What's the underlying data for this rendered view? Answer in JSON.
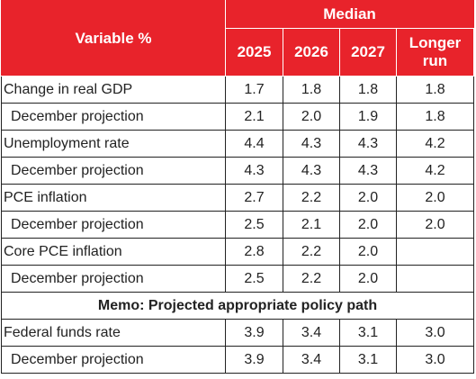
{
  "table": {
    "header": {
      "variable": "Variable %",
      "median": "Median",
      "columns": [
        "2025",
        "2026",
        "2027",
        "Longer run"
      ]
    },
    "rows": [
      {
        "label": "Change in real GDP",
        "indent": false,
        "values": [
          "1.7",
          "1.8",
          "1.8",
          "1.8"
        ]
      },
      {
        "label": "December projection",
        "indent": true,
        "values": [
          "2.1",
          "2.0",
          "1.9",
          "1.8"
        ]
      },
      {
        "label": "Unemployment rate",
        "indent": false,
        "values": [
          "4.4",
          "4.3",
          "4.3",
          "4.2"
        ]
      },
      {
        "label": "December projection",
        "indent": true,
        "values": [
          "4.3",
          "4.3",
          "4.3",
          "4.2"
        ]
      },
      {
        "label": "PCE inflation",
        "indent": false,
        "values": [
          "2.7",
          "2.2",
          "2.0",
          "2.0"
        ]
      },
      {
        "label": "December projection",
        "indent": true,
        "values": [
          "2.5",
          "2.1",
          "2.0",
          "2.0"
        ]
      },
      {
        "label": "Core PCE inflation",
        "indent": false,
        "values": [
          "2.8",
          "2.2",
          "2.0",
          null
        ]
      },
      {
        "label": "December projection",
        "indent": true,
        "values": [
          "2.5",
          "2.2",
          "2.0",
          null
        ]
      }
    ],
    "memo": "Memo: Projected appropriate policy path",
    "policy_rows": [
      {
        "label": "Federal funds rate",
        "indent": false,
        "values": [
          "3.9",
          "3.4",
          "3.1",
          "3.0"
        ]
      },
      {
        "label": "December projection",
        "indent": true,
        "values": [
          "3.9",
          "3.4",
          "3.1",
          "3.0"
        ]
      }
    ]
  }
}
